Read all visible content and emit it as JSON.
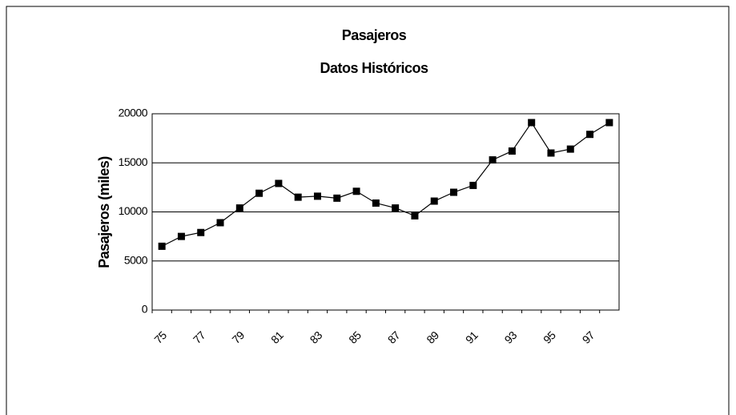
{
  "chart_data": {
    "type": "line",
    "title": "Pasajeros",
    "subtitle": "Datos Históricos",
    "y_label": "Pasajeros (miles)",
    "categories": [
      "75",
      null,
      "77",
      null,
      "79",
      null,
      "81",
      null,
      "83",
      null,
      "85",
      null,
      "87",
      null,
      "89",
      null,
      "91",
      null,
      "93",
      null,
      "95",
      null,
      "97",
      null
    ],
    "series": [
      {
        "name": "Pasajeros",
        "color": "#000000",
        "values": [
          6500,
          7500,
          7900,
          8900,
          10400,
          11900,
          12900,
          11500,
          11600,
          11400,
          12100,
          10900,
          10400,
          9600,
          11100,
          12000,
          12700,
          15300,
          16200,
          19100,
          16000,
          16400,
          17900,
          19100
        ]
      }
    ],
    "ylim": [
      0,
      20000
    ],
    "yticks": [
      0,
      5000,
      10000,
      15000,
      20000
    ],
    "grid": true
  }
}
